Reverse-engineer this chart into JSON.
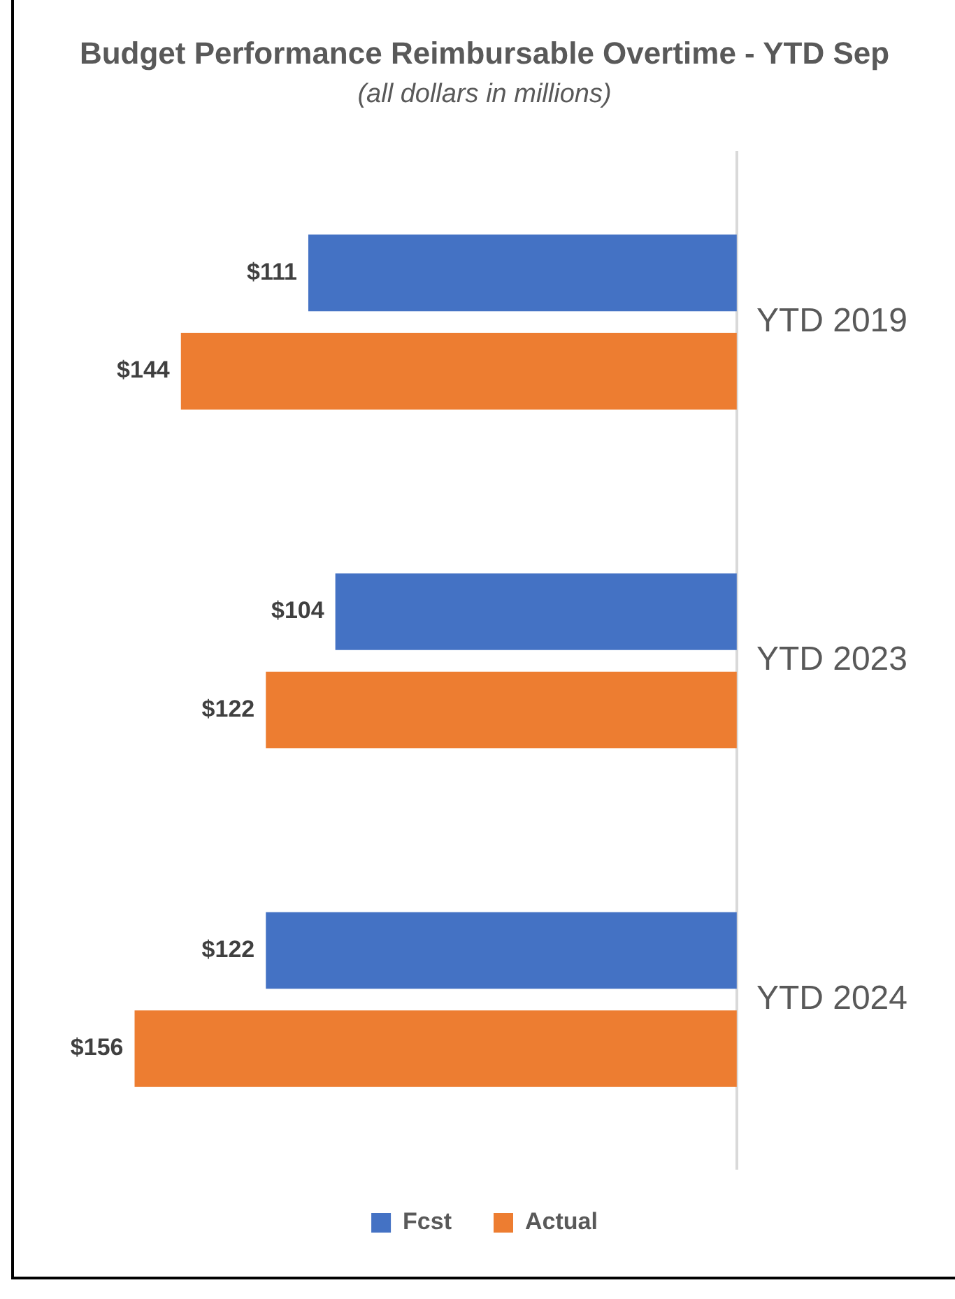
{
  "chart_data": {
    "type": "bar",
    "orientation": "horizontal",
    "title": "Budget Performance Reimbursable Overtime - YTD Sep",
    "subtitle": "(all dollars in millions)",
    "categories": [
      "YTD 2019",
      "YTD 2023",
      "YTD 2024"
    ],
    "series": [
      {
        "name": "Fcst",
        "color": "#4472c4",
        "values": [
          111,
          104,
          122
        ],
        "value_labels": [
          "$111",
          "$104",
          "$122"
        ]
      },
      {
        "name": "Actual",
        "color": "#ed7d31",
        "values": [
          144,
          122,
          156
        ],
        "value_labels": [
          "$144",
          "$122",
          "$156"
        ]
      }
    ],
    "legend": "bottom"
  }
}
